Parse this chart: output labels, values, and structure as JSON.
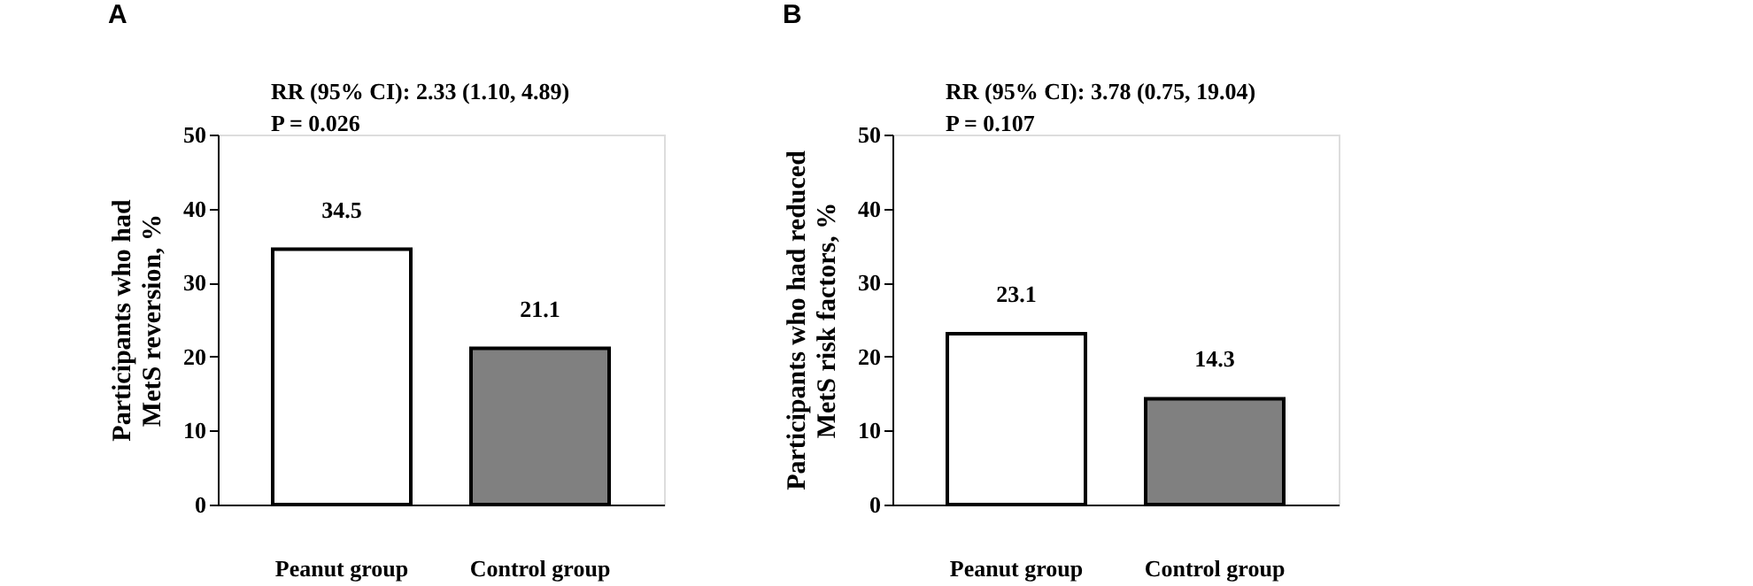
{
  "chart_data": [
    {
      "type": "bar",
      "title": "A",
      "categories": [
        "Peanut group",
        "Control group"
      ],
      "values": [
        34.5,
        21.1
      ],
      "colors": [
        "#ffffff",
        "#808080"
      ],
      "ylabel": "Participants who had\nMetS reversion, %",
      "ylim": [
        0,
        50
      ],
      "yticks": [
        0,
        10,
        20,
        30,
        40,
        50
      ],
      "data_labels": true,
      "grid": false,
      "annotations": [
        "RR (95% CI): 2.33 (1.10, 4.89)",
        "P = 0.026"
      ]
    },
    {
      "type": "bar",
      "title": "B",
      "categories": [
        "Peanut group",
        "Control group"
      ],
      "values": [
        23.1,
        14.3
      ],
      "colors": [
        "#ffffff",
        "#808080"
      ],
      "ylabel": "Participants who had reduced\nMetS risk factors, %",
      "ylim": [
        0,
        50
      ],
      "yticks": [
        0,
        10,
        20,
        30,
        40,
        50
      ],
      "data_labels": true,
      "grid": false,
      "annotations": [
        "RR (95% CI): 3.78 (0.75, 19.04)",
        "P = 0.107"
      ]
    }
  ]
}
